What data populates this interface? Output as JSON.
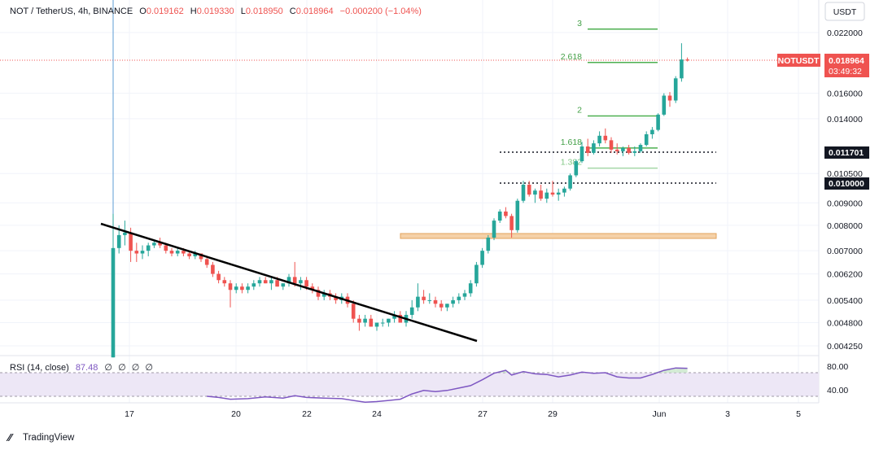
{
  "header": {
    "symbol": "NOT / TetherUS, 4h, BINANCE",
    "open_label": "O",
    "open": "0.019162",
    "high_label": "H",
    "high": "0.019330",
    "low_label": "L",
    "low": "0.018950",
    "close_label": "C",
    "close": "0.018964",
    "change": "−0.000200 (−1.04%)"
  },
  "currency_button": "USDT",
  "price_tag": {
    "symbol": "NOTUSDT",
    "price": "0.018964",
    "countdown": "03:49:32"
  },
  "level_tags": [
    "0.011701",
    "0.010000"
  ],
  "rsi": {
    "title": "RSI (14, close)",
    "value": "87.48",
    "placeholders": [
      "∅",
      "∅",
      "∅",
      "∅"
    ],
    "ticks": [
      "80.00",
      "40.00"
    ]
  },
  "footer": {
    "brand": "TradingView"
  },
  "colors": {
    "up": "#26a69a",
    "down": "#ef5350",
    "fib": "#4caf50",
    "rsi": "#7e57c2",
    "zone": "#f0c08a"
  },
  "chart_data": {
    "type": "candlestick",
    "symbol": "NOT / TetherUS",
    "interval": "4h",
    "y_scale": "log",
    "y_ticks": [
      "0.022000",
      "0.016000",
      "0.014000",
      "0.010500",
      "0.009000",
      "0.008000",
      "0.007000",
      "0.006200",
      "0.005400",
      "0.004800",
      "0.004250"
    ],
    "x_ticks": [
      "17",
      "20",
      "22",
      "24",
      "27",
      "29",
      "Jun",
      "3",
      "5"
    ],
    "fib_levels": [
      {
        "label": "3",
        "price": 0.0224
      },
      {
        "label": "2.618",
        "price": 0.0188
      },
      {
        "label": "2",
        "price": 0.0142
      },
      {
        "label": "1.618",
        "price": 0.012
      },
      {
        "label": "1.382",
        "price": 0.0108
      }
    ],
    "horizontal_levels": [
      0.011701,
      0.01
    ],
    "support_zone": [
      0.0075,
      0.0077
    ],
    "trendline": [
      {
        "date": "16",
        "price": 0.0081
      },
      {
        "date": "25.5",
        "price": 0.00445
      }
    ],
    "candles": [
      {
        "x": 0.0,
        "o": 0.004,
        "h": 0.0085,
        "l": 0.004,
        "c": 0.0071
      },
      {
        "x": 0.2,
        "o": 0.0071,
        "h": 0.008,
        "l": 0.0069,
        "c": 0.0076
      },
      {
        "x": 0.4,
        "o": 0.0076,
        "h": 0.0082,
        "l": 0.0072,
        "c": 0.0077
      },
      {
        "x": 0.6,
        "o": 0.0077,
        "h": 0.0079,
        "l": 0.0066,
        "c": 0.007
      },
      {
        "x": 0.8,
        "o": 0.007,
        "h": 0.0073,
        "l": 0.0066,
        "c": 0.0069
      },
      {
        "x": 1.0,
        "o": 0.0069,
        "h": 0.0072,
        "l": 0.0067,
        "c": 0.007
      },
      {
        "x": 1.2,
        "o": 0.007,
        "h": 0.0073,
        "l": 0.0068,
        "c": 0.0072
      },
      {
        "x": 1.4,
        "o": 0.0072,
        "h": 0.0074,
        "l": 0.0071,
        "c": 0.0073
      },
      {
        "x": 1.6,
        "o": 0.0073,
        "h": 0.0075,
        "l": 0.0071,
        "c": 0.0072
      },
      {
        "x": 1.8,
        "o": 0.0072,
        "h": 0.0073,
        "l": 0.0069,
        "c": 0.007
      },
      {
        "x": 2.0,
        "o": 0.007,
        "h": 0.0071,
        "l": 0.0068,
        "c": 0.0069
      },
      {
        "x": 2.2,
        "o": 0.0069,
        "h": 0.0071,
        "l": 0.0068,
        "c": 0.007
      },
      {
        "x": 2.4,
        "o": 0.007,
        "h": 0.0071,
        "l": 0.0068,
        "c": 0.0069
      },
      {
        "x": 2.6,
        "o": 0.0069,
        "h": 0.007,
        "l": 0.0067,
        "c": 0.0068
      },
      {
        "x": 2.8,
        "o": 0.0068,
        "h": 0.007,
        "l": 0.0067,
        "c": 0.0069
      },
      {
        "x": 3.0,
        "o": 0.0069,
        "h": 0.0069,
        "l": 0.0066,
        "c": 0.0067
      },
      {
        "x": 3.2,
        "o": 0.0067,
        "h": 0.0068,
        "l": 0.0064,
        "c": 0.0065
      },
      {
        "x": 3.4,
        "o": 0.0065,
        "h": 0.0066,
        "l": 0.0061,
        "c": 0.0062
      },
      {
        "x": 3.6,
        "o": 0.0062,
        "h": 0.0063,
        "l": 0.0059,
        "c": 0.006
      },
      {
        "x": 3.8,
        "o": 0.006,
        "h": 0.0061,
        "l": 0.0058,
        "c": 0.0059
      },
      {
        "x": 4.0,
        "o": 0.0059,
        "h": 0.006,
        "l": 0.0052,
        "c": 0.0057
      },
      {
        "x": 4.2,
        "o": 0.0057,
        "h": 0.0059,
        "l": 0.0056,
        "c": 0.0058
      },
      {
        "x": 4.4,
        "o": 0.0058,
        "h": 0.0059,
        "l": 0.0056,
        "c": 0.0057
      },
      {
        "x": 4.6,
        "o": 0.0057,
        "h": 0.0059,
        "l": 0.0056,
        "c": 0.0058
      },
      {
        "x": 4.8,
        "o": 0.0058,
        "h": 0.006,
        "l": 0.0057,
        "c": 0.0059
      },
      {
        "x": 5.0,
        "o": 0.0059,
        "h": 0.0061,
        "l": 0.0058,
        "c": 0.006
      },
      {
        "x": 5.2,
        "o": 0.006,
        "h": 0.0061,
        "l": 0.0059,
        "c": 0.0059
      },
      {
        "x": 5.4,
        "o": 0.0059,
        "h": 0.0061,
        "l": 0.0057,
        "c": 0.006
      },
      {
        "x": 5.6,
        "o": 0.006,
        "h": 0.0061,
        "l": 0.0058,
        "c": 0.0058
      },
      {
        "x": 5.8,
        "o": 0.0058,
        "h": 0.0059,
        "l": 0.0057,
        "c": 0.0059
      },
      {
        "x": 6.0,
        "o": 0.0059,
        "h": 0.0062,
        "l": 0.0058,
        "c": 0.0061
      },
      {
        "x": 6.2,
        "o": 0.0061,
        "h": 0.0066,
        "l": 0.0058,
        "c": 0.0059
      },
      {
        "x": 6.4,
        "o": 0.0059,
        "h": 0.0061,
        "l": 0.0057,
        "c": 0.006
      },
      {
        "x": 6.6,
        "o": 0.006,
        "h": 0.0061,
        "l": 0.0057,
        "c": 0.0058
      },
      {
        "x": 6.8,
        "o": 0.0058,
        "h": 0.0059,
        "l": 0.0056,
        "c": 0.0057
      },
      {
        "x": 7.0,
        "o": 0.0057,
        "h": 0.0058,
        "l": 0.0054,
        "c": 0.0055
      },
      {
        "x": 7.2,
        "o": 0.0055,
        "h": 0.0057,
        "l": 0.0054,
        "c": 0.0056
      },
      {
        "x": 7.4,
        "o": 0.0056,
        "h": 0.0057,
        "l": 0.0054,
        "c": 0.0055
      },
      {
        "x": 7.6,
        "o": 0.0055,
        "h": 0.0056,
        "l": 0.0053,
        "c": 0.0054
      },
      {
        "x": 7.8,
        "o": 0.0054,
        "h": 0.0056,
        "l": 0.0053,
        "c": 0.0055
      },
      {
        "x": 8.0,
        "o": 0.0055,
        "h": 0.0056,
        "l": 0.0052,
        "c": 0.0053
      },
      {
        "x": 8.2,
        "o": 0.0053,
        "h": 0.0054,
        "l": 0.0048,
        "c": 0.0049
      },
      {
        "x": 8.4,
        "o": 0.0049,
        "h": 0.005,
        "l": 0.0046,
        "c": 0.0048
      },
      {
        "x": 8.6,
        "o": 0.0048,
        "h": 0.005,
        "l": 0.0047,
        "c": 0.0049
      },
      {
        "x": 8.8,
        "o": 0.0049,
        "h": 0.005,
        "l": 0.0047,
        "c": 0.0047
      },
      {
        "x": 9.0,
        "o": 0.0047,
        "h": 0.0048,
        "l": 0.0046,
        "c": 0.0048
      },
      {
        "x": 9.2,
        "o": 0.0048,
        "h": 0.0049,
        "l": 0.0047,
        "c": 0.0048
      },
      {
        "x": 9.4,
        "o": 0.0048,
        "h": 0.0049,
        "l": 0.0047,
        "c": 0.0049
      },
      {
        "x": 9.6,
        "o": 0.0049,
        "h": 0.0051,
        "l": 0.0048,
        "c": 0.005
      },
      {
        "x": 9.8,
        "o": 0.005,
        "h": 0.0051,
        "l": 0.0048,
        "c": 0.0048
      },
      {
        "x": 10.0,
        "o": 0.0048,
        "h": 0.0051,
        "l": 0.0047,
        "c": 0.005
      },
      {
        "x": 10.2,
        "o": 0.005,
        "h": 0.0054,
        "l": 0.0049,
        "c": 0.0052
      },
      {
        "x": 10.4,
        "o": 0.0052,
        "h": 0.0059,
        "l": 0.0051,
        "c": 0.0055
      },
      {
        "x": 10.6,
        "o": 0.0055,
        "h": 0.0057,
        "l": 0.0053,
        "c": 0.0054
      },
      {
        "x": 10.8,
        "o": 0.0054,
        "h": 0.0056,
        "l": 0.0053,
        "c": 0.0054
      },
      {
        "x": 11.0,
        "o": 0.0054,
        "h": 0.0055,
        "l": 0.0052,
        "c": 0.0053
      },
      {
        "x": 11.2,
        "o": 0.0053,
        "h": 0.0054,
        "l": 0.0051,
        "c": 0.0052
      },
      {
        "x": 11.4,
        "o": 0.0052,
        "h": 0.0053,
        "l": 0.0051,
        "c": 0.0053
      },
      {
        "x": 11.6,
        "o": 0.0053,
        "h": 0.0055,
        "l": 0.0052,
        "c": 0.0054
      },
      {
        "x": 11.8,
        "o": 0.0054,
        "h": 0.0056,
        "l": 0.0053,
        "c": 0.0055
      },
      {
        "x": 12.0,
        "o": 0.0055,
        "h": 0.0057,
        "l": 0.0054,
        "c": 0.0056
      },
      {
        "x": 12.2,
        "o": 0.0056,
        "h": 0.006,
        "l": 0.0055,
        "c": 0.0059
      },
      {
        "x": 12.4,
        "o": 0.0059,
        "h": 0.0066,
        "l": 0.0058,
        "c": 0.0065
      },
      {
        "x": 12.6,
        "o": 0.0065,
        "h": 0.0071,
        "l": 0.0064,
        "c": 0.007
      },
      {
        "x": 12.8,
        "o": 0.007,
        "h": 0.0076,
        "l": 0.0069,
        "c": 0.0075
      },
      {
        "x": 13.0,
        "o": 0.0075,
        "h": 0.0083,
        "l": 0.0074,
        "c": 0.0082
      },
      {
        "x": 13.2,
        "o": 0.0082,
        "h": 0.0087,
        "l": 0.0081,
        "c": 0.0086
      },
      {
        "x": 13.4,
        "o": 0.0086,
        "h": 0.0088,
        "l": 0.0083,
        "c": 0.0084
      },
      {
        "x": 13.6,
        "o": 0.0084,
        "h": 0.0085,
        "l": 0.0075,
        "c": 0.0078
      },
      {
        "x": 13.8,
        "o": 0.0078,
        "h": 0.0092,
        "l": 0.0077,
        "c": 0.0091
      },
      {
        "x": 14.0,
        "o": 0.0091,
        "h": 0.0101,
        "l": 0.009,
        "c": 0.0099
      },
      {
        "x": 14.2,
        "o": 0.0099,
        "h": 0.0101,
        "l": 0.0093,
        "c": 0.0094
      },
      {
        "x": 14.4,
        "o": 0.0094,
        "h": 0.0097,
        "l": 0.009,
        "c": 0.0096
      },
      {
        "x": 14.6,
        "o": 0.0096,
        "h": 0.0099,
        "l": 0.0091,
        "c": 0.0092
      },
      {
        "x": 14.8,
        "o": 0.0092,
        "h": 0.0097,
        "l": 0.009,
        "c": 0.0095
      },
      {
        "x": 15.0,
        "o": 0.0095,
        "h": 0.0101,
        "l": 0.0093,
        "c": 0.0094
      },
      {
        "x": 15.2,
        "o": 0.0094,
        "h": 0.0097,
        "l": 0.0091,
        "c": 0.0095
      },
      {
        "x": 15.4,
        "o": 0.0095,
        "h": 0.0098,
        "l": 0.0093,
        "c": 0.0097
      },
      {
        "x": 15.6,
        "o": 0.0097,
        "h": 0.0105,
        "l": 0.0096,
        "c": 0.0104
      },
      {
        "x": 15.8,
        "o": 0.0104,
        "h": 0.0113,
        "l": 0.0103,
        "c": 0.0112
      },
      {
        "x": 16.0,
        "o": 0.0112,
        "h": 0.0124,
        "l": 0.0111,
        "c": 0.0121
      },
      {
        "x": 16.2,
        "o": 0.0121,
        "h": 0.0126,
        "l": 0.0115,
        "c": 0.0117
      },
      {
        "x": 16.4,
        "o": 0.0117,
        "h": 0.0125,
        "l": 0.0116,
        "c": 0.0123
      },
      {
        "x": 16.6,
        "o": 0.0123,
        "h": 0.0131,
        "l": 0.0121,
        "c": 0.0128
      },
      {
        "x": 16.8,
        "o": 0.0128,
        "h": 0.0133,
        "l": 0.0123,
        "c": 0.0125
      },
      {
        "x": 17.0,
        "o": 0.0125,
        "h": 0.0127,
        "l": 0.0117,
        "c": 0.0119
      },
      {
        "x": 17.2,
        "o": 0.0119,
        "h": 0.0123,
        "l": 0.0116,
        "c": 0.0118
      },
      {
        "x": 17.4,
        "o": 0.0118,
        "h": 0.0121,
        "l": 0.0115,
        "c": 0.012
      },
      {
        "x": 17.6,
        "o": 0.012,
        "h": 0.0122,
        "l": 0.0116,
        "c": 0.0117
      },
      {
        "x": 17.8,
        "o": 0.0117,
        "h": 0.0121,
        "l": 0.0115,
        "c": 0.0118
      },
      {
        "x": 18.0,
        "o": 0.0118,
        "h": 0.0123,
        "l": 0.0117,
        "c": 0.0122
      },
      {
        "x": 18.2,
        "o": 0.0122,
        "h": 0.0131,
        "l": 0.0121,
        "c": 0.0129
      },
      {
        "x": 18.4,
        "o": 0.0129,
        "h": 0.0134,
        "l": 0.0126,
        "c": 0.0132
      },
      {
        "x": 18.6,
        "o": 0.0132,
        "h": 0.0144,
        "l": 0.0131,
        "c": 0.0143
      },
      {
        "x": 18.8,
        "o": 0.0143,
        "h": 0.016,
        "l": 0.0142,
        "c": 0.0158
      },
      {
        "x": 19.0,
        "o": 0.0158,
        "h": 0.0161,
        "l": 0.0149,
        "c": 0.0154
      },
      {
        "x": 19.2,
        "o": 0.0154,
        "h": 0.0175,
        "l": 0.0152,
        "c": 0.0173
      },
      {
        "x": 19.4,
        "o": 0.0173,
        "h": 0.0208,
        "l": 0.017,
        "c": 0.0191
      },
      {
        "x": 19.6,
        "o": 0.0191,
        "h": 0.0193,
        "l": 0.0189,
        "c": 0.019
      }
    ],
    "rsi_series": [
      {
        "x": 3.2,
        "v": 40
      },
      {
        "x": 3.6,
        "v": 38
      },
      {
        "x": 4.0,
        "v": 35
      },
      {
        "x": 4.6,
        "v": 36
      },
      {
        "x": 5.2,
        "v": 39
      },
      {
        "x": 5.8,
        "v": 37
      },
      {
        "x": 6.2,
        "v": 41
      },
      {
        "x": 6.6,
        "v": 38
      },
      {
        "x": 7.2,
        "v": 37
      },
      {
        "x": 7.8,
        "v": 36
      },
      {
        "x": 8.2,
        "v": 33
      },
      {
        "x": 8.6,
        "v": 30
      },
      {
        "x": 9.0,
        "v": 31
      },
      {
        "x": 9.4,
        "v": 33
      },
      {
        "x": 9.8,
        "v": 35
      },
      {
        "x": 10.2,
        "v": 44
      },
      {
        "x": 10.6,
        "v": 50
      },
      {
        "x": 11.0,
        "v": 48
      },
      {
        "x": 11.4,
        "v": 50
      },
      {
        "x": 11.8,
        "v": 54
      },
      {
        "x": 12.2,
        "v": 58
      },
      {
        "x": 12.6,
        "v": 68
      },
      {
        "x": 13.0,
        "v": 79
      },
      {
        "x": 13.4,
        "v": 84
      },
      {
        "x": 13.6,
        "v": 76
      },
      {
        "x": 14.0,
        "v": 82
      },
      {
        "x": 14.4,
        "v": 78
      },
      {
        "x": 14.8,
        "v": 77
      },
      {
        "x": 15.2,
        "v": 73
      },
      {
        "x": 15.6,
        "v": 76
      },
      {
        "x": 16.0,
        "v": 81
      },
      {
        "x": 16.4,
        "v": 79
      },
      {
        "x": 16.8,
        "v": 80
      },
      {
        "x": 17.2,
        "v": 73
      },
      {
        "x": 17.6,
        "v": 71
      },
      {
        "x": 18.0,
        "v": 71
      },
      {
        "x": 18.4,
        "v": 77
      },
      {
        "x": 18.8,
        "v": 84
      },
      {
        "x": 19.2,
        "v": 88
      },
      {
        "x": 19.6,
        "v": 87.48
      }
    ]
  }
}
